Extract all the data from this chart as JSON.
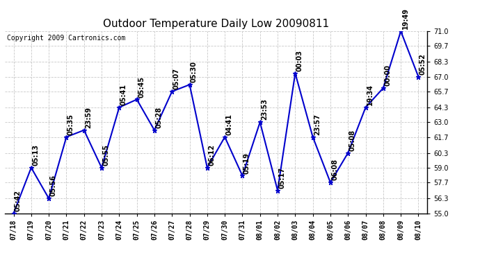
{
  "title": "Outdoor Temperature Daily Low 20090811",
  "copyright": "Copyright 2009 Cartronics.com",
  "dates": [
    "07/18",
    "07/19",
    "07/20",
    "07/21",
    "07/22",
    "07/23",
    "07/24",
    "07/25",
    "07/26",
    "07/27",
    "07/28",
    "07/29",
    "07/30",
    "07/31",
    "08/01",
    "08/02",
    "08/03",
    "08/04",
    "08/05",
    "08/06",
    "08/07",
    "08/08",
    "08/09",
    "08/10"
  ],
  "values": [
    55.0,
    59.0,
    56.3,
    61.7,
    62.3,
    59.0,
    64.3,
    65.0,
    62.3,
    65.7,
    66.3,
    59.0,
    61.7,
    58.3,
    63.0,
    57.0,
    67.3,
    61.7,
    57.7,
    60.3,
    64.3,
    66.0,
    71.0,
    67.0
  ],
  "times": [
    "05:42",
    "05:13",
    "05:56",
    "05:35",
    "23:59",
    "05:55",
    "05:41",
    "05:45",
    "05:28",
    "05:07",
    "05:30",
    "06:12",
    "04:41",
    "05:19",
    "23:53",
    "05:17",
    "00:03",
    "23:57",
    "06:08",
    "05:08",
    "19:34",
    "00:00",
    "19:49",
    "05:52"
  ],
  "ylim": [
    55.0,
    71.0
  ],
  "yticks": [
    55.0,
    56.3,
    57.7,
    59.0,
    60.3,
    61.7,
    63.0,
    64.3,
    65.7,
    67.0,
    68.3,
    69.7,
    71.0
  ],
  "line_color": "#0000cc",
  "marker_color": "#0000cc",
  "background_color": "#ffffff",
  "grid_color": "#c8c8c8",
  "title_fontsize": 11,
  "copyright_fontsize": 7,
  "label_fontsize": 7,
  "tick_fontsize": 7
}
